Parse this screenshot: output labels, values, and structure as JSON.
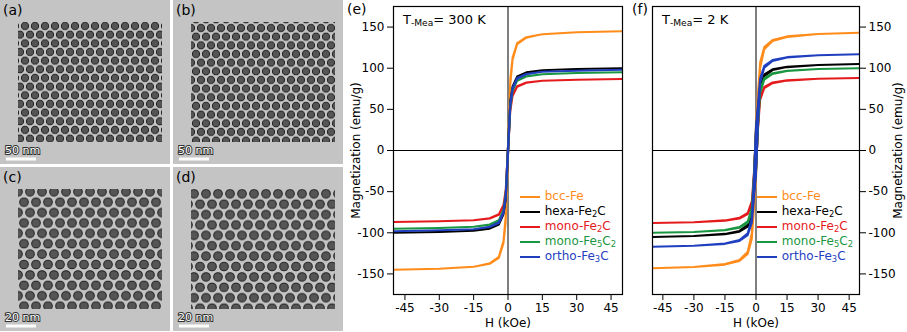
{
  "images": [
    {
      "label": "(a)",
      "scale_bar": "50 nm"
    },
    {
      "label": "(b)",
      "scale_bar": "50 nm"
    },
    {
      "label": "(c)",
      "scale_bar": "20 nm"
    },
    {
      "label": "(d)",
      "scale_bar": "20 nm"
    }
  ],
  "chart_data": [
    {
      "type": "line",
      "panel_label": "(e)",
      "annotation": {
        "text": "T",
        "subscript": "-Mea",
        "after": "= 300 K"
      },
      "x_label": "H (kOe)",
      "y_label": "Magnetization (emu/g)",
      "xlim": [
        -50,
        50
      ],
      "xticks": [
        -45,
        -30,
        -15,
        0,
        15,
        30,
        45
      ],
      "ylim": [
        -175,
        175
      ],
      "yticks": [
        -150,
        -100,
        -50,
        0,
        50,
        100,
        150
      ],
      "grid": false,
      "legend": "lower right",
      "x": [
        -50,
        -30,
        -15,
        -8,
        -4,
        -2,
        -1,
        0,
        1,
        2,
        4,
        8,
        15,
        30,
        50,
        50,
        30,
        15,
        8,
        4,
        2,
        1,
        0,
        -1,
        -2,
        -4,
        -8,
        -15,
        -30,
        -50
      ],
      "series": [
        {
          "name": "bcc-Fe",
          "color": "#ff8c1a",
          "values": [
            -145,
            -143.6,
            -141.4,
            -137.8,
            -130.5,
            -113.1,
            -87,
            -7.3,
            79.8,
            110.2,
            129.1,
            137,
            141.4,
            143.6,
            145,
            145,
            143.6,
            141.4,
            137.8,
            130.5,
            113.1,
            87,
            7.3,
            -79.8,
            -110.2,
            -129.1,
            -137,
            -141.4,
            -143.6,
            -145
          ]
        },
        {
          "name": "hexa-Fe2C",
          "color": "#000000",
          "values": [
            -100,
            -99,
            -97.5,
            -95,
            -90,
            -78,
            -60,
            -5,
            55,
            76,
            89,
            94.5,
            97.5,
            99,
            100,
            100,
            99,
            97.5,
            95,
            90,
            78,
            60,
            5,
            -55,
            -76,
            -89,
            -94.5,
            -97.5,
            -99,
            -100
          ]
        },
        {
          "name": "mono-Fe2C",
          "color": "#e41a1c",
          "values": [
            -87,
            -86.1,
            -84.8,
            -82.7,
            -78.3,
            -67.9,
            -52.2,
            -4.4,
            47.9,
            66.1,
            77.4,
            82.2,
            84.8,
            86.1,
            87,
            87,
            86.1,
            84.8,
            82.7,
            78.3,
            67.9,
            52.2,
            4.4,
            -47.9,
            -66.1,
            -77.4,
            -82.2,
            -84.8,
            -86.1,
            -87
          ]
        },
        {
          "name": "mono-Fe5C2",
          "color": "#1a9641",
          "values": [
            -95,
            -94.1,
            -92.6,
            -90.3,
            -85.5,
            -74.1,
            -57,
            -4.8,
            52.3,
            72.2,
            84.6,
            89.8,
            92.6,
            94.1,
            95,
            95,
            94.1,
            92.6,
            90.3,
            85.5,
            74.1,
            57,
            4.8,
            -52.3,
            -72.2,
            -84.6,
            -89.8,
            -92.6,
            -94.1,
            -95
          ]
        },
        {
          "name": "ortho-Fe3C",
          "color": "#1f3fbf",
          "values": [
            -98,
            -97,
            -95.6,
            -93.1,
            -88.2,
            -76.4,
            -58.8,
            -4.9,
            53.9,
            74.5,
            87.2,
            92.6,
            95.6,
            97,
            98,
            98,
            97,
            95.6,
            93.1,
            88.2,
            76.4,
            58.8,
            4.9,
            -53.9,
            -74.5,
            -87.2,
            -92.6,
            -95.6,
            -97,
            -98
          ]
        }
      ]
    },
    {
      "type": "line",
      "panel_label": "(f)",
      "annotation": {
        "text": "T",
        "subscript": "-Mea",
        "after": "= 2 K"
      },
      "x_label": "H (kOe)",
      "y_label": "Magnetization (emu/g)",
      "xlim": [
        -50,
        50
      ],
      "xticks": [
        -45,
        -30,
        -15,
        0,
        15,
        30,
        45
      ],
      "ylim": [
        -175,
        175
      ],
      "yticks": [
        -150,
        -100,
        -50,
        0,
        50,
        100,
        150
      ],
      "grid": false,
      "legend": "lower right",
      "x": [
        -50,
        -30,
        -15,
        -8,
        -4,
        -2,
        -1,
        0,
        1,
        2,
        4,
        8,
        15,
        30,
        50,
        50,
        30,
        15,
        8,
        4,
        2,
        1,
        0,
        -1,
        -2,
        -4,
        -8,
        -15,
        -30,
        -50
      ],
      "series": [
        {
          "name": "bcc-Fe",
          "color": "#ff8c1a",
          "values": [
            -143,
            -141.6,
            -138.7,
            -134.4,
            -125.8,
            -107.3,
            -71.5,
            -35.8,
            42.9,
            100.1,
            123,
            133,
            138,
            141.6,
            143,
            143,
            141.6,
            138.7,
            134.4,
            125.8,
            107.3,
            71.5,
            35.8,
            -42.9,
            -100.1,
            -123,
            -133,
            -138,
            -141.6,
            -143
          ]
        },
        {
          "name": "hexa-Fe2C",
          "color": "#000000",
          "values": [
            -105,
            -104,
            -101.9,
            -98.7,
            -92.4,
            -78.8,
            -52.5,
            -26.3,
            31.5,
            73.5,
            90.3,
            97.7,
            101.3,
            104,
            105,
            105,
            104,
            101.9,
            98.7,
            92.4,
            78.8,
            52.5,
            26.3,
            -31.5,
            -73.5,
            -90.3,
            -97.7,
            -101.3,
            -104,
            -105
          ]
        },
        {
          "name": "mono-Fe2C",
          "color": "#e41a1c",
          "values": [
            -88,
            -87.1,
            -85.4,
            -82.7,
            -77.4,
            -66,
            -44,
            -22,
            26.4,
            61.6,
            75.7,
            81.8,
            84.9,
            87.1,
            88,
            88,
            87.1,
            85.4,
            82.7,
            77.4,
            66,
            44,
            22,
            -26.4,
            -61.6,
            -75.7,
            -81.8,
            -84.9,
            -87.1,
            -88
          ]
        },
        {
          "name": "mono-Fe5C2",
          "color": "#1a9641",
          "values": [
            -100,
            -99,
            -97,
            -94,
            -88,
            -75,
            -50,
            -25,
            30,
            70,
            86,
            93,
            96.5,
            99,
            100,
            100,
            99,
            97,
            94,
            88,
            75,
            50,
            25,
            -30,
            -70,
            -86,
            -93,
            -96.5,
            -99,
            -100
          ]
        },
        {
          "name": "ortho-Fe3C",
          "color": "#1f3fbf",
          "values": [
            -117,
            -115.8,
            -113.5,
            -110,
            -103,
            -87.8,
            -58.5,
            -29.3,
            35.1,
            81.9,
            100.6,
            108.8,
            112.9,
            115.8,
            117,
            117,
            115.8,
            113.5,
            110,
            103,
            87.8,
            58.5,
            29.3,
            -35.1,
            -81.9,
            -100.6,
            -108.8,
            -112.9,
            -115.8,
            -117
          ]
        }
      ]
    }
  ]
}
